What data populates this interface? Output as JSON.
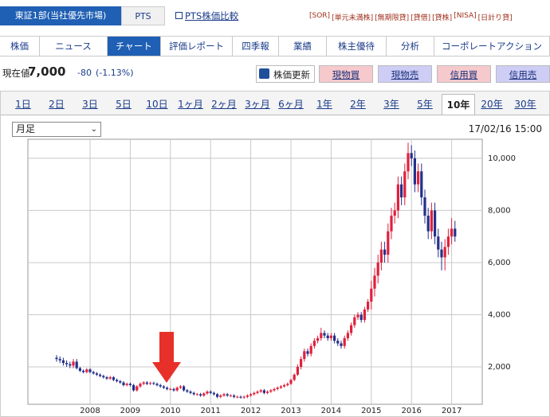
{
  "header": {
    "market_tabs": [
      "東証1部(当社優先市場)",
      "PTS"
    ],
    "link": "PTS株価比較",
    "badges": [
      "[SOR]",
      "[単元未満株]",
      "[無期限貸]",
      "[貸借]",
      "[貸株]",
      "[NISA]",
      "[日計り貸]"
    ]
  },
  "nav": {
    "items": [
      "株価",
      "ニュース",
      "チャート",
      "評価レポート",
      "四季報",
      "業績",
      "株主優待",
      "分析",
      "コーポレートアクション"
    ],
    "active": 2
  },
  "quote": {
    "label": "現在値",
    "price": "7,000",
    "change": "-80",
    "change_pct": "(-1.13%)"
  },
  "actions": [
    "株価更新",
    "現物買",
    "現物売",
    "信用買",
    "信用売"
  ],
  "periods": {
    "items": [
      "1日",
      "2日",
      "3日",
      "5日",
      "10日",
      "1ヶ月",
      "2ヶ月",
      "3ヶ月",
      "6ヶ月",
      "1年",
      "2年",
      "3年",
      "5年",
      "10年",
      "20年",
      "30年"
    ],
    "active": 13
  },
  "chart_data": {
    "type": "candlestick",
    "timeframe": "月足",
    "timestamp": "17/02/16 15:00",
    "up_color": "#e0203c",
    "down_color": "#22308a",
    "grid": true,
    "ylim": [
      565,
      10730
    ],
    "yticks": [
      {
        "value": 2000,
        "label": "2,000"
      },
      {
        "value": 4000,
        "label": "4,000"
      },
      {
        "value": 6000,
        "label": "6,000"
      },
      {
        "value": 8000,
        "label": "8,000"
      },
      {
        "value": 10000,
        "label": "10,000"
      }
    ],
    "categories": [
      null,
      null,
      null,
      null,
      null,
      null,
      null,
      null,
      null,
      null,
      "2008",
      null,
      null,
      null,
      null,
      null,
      null,
      null,
      null,
      null,
      null,
      null,
      "2009",
      null,
      null,
      null,
      null,
      null,
      null,
      null,
      null,
      null,
      null,
      null,
      "2010",
      null,
      null,
      null,
      null,
      null,
      null,
      null,
      null,
      null,
      null,
      null,
      "2011",
      null,
      null,
      null,
      null,
      null,
      null,
      null,
      null,
      null,
      null,
      null,
      "2012",
      null,
      null,
      null,
      null,
      null,
      null,
      null,
      null,
      null,
      null,
      null,
      "2013",
      null,
      null,
      null,
      null,
      null,
      null,
      null,
      null,
      null,
      null,
      null,
      "2014",
      null,
      null,
      null,
      null,
      null,
      null,
      null,
      null,
      null,
      null,
      null,
      "2015",
      null,
      null,
      null,
      null,
      null,
      null,
      null,
      null,
      null,
      null,
      null,
      "2016",
      null,
      null,
      null,
      null,
      null,
      null,
      null,
      null,
      null,
      null,
      null,
      "2017",
      null
    ],
    "open": [
      2350,
      2300,
      2250,
      2150,
      2100,
      2050,
      2200,
      1950,
      1850,
      1800,
      1900,
      1800,
      1750,
      1700,
      1650,
      1600,
      1550,
      1600,
      1500,
      1450,
      1400,
      1300,
      1350,
      1300,
      1100,
      1250,
      1350,
      1400,
      1350,
      1380,
      1350,
      1300,
      1250,
      1200,
      1150,
      1150,
      1100,
      1200,
      1250,
      1100,
      1050,
      1000,
      950,
      950,
      900,
      980,
      1050,
      1000,
      950,
      850,
      900,
      950,
      900,
      900,
      850,
      850,
      830,
      850,
      900,
      950,
      1000,
      1050,
      1100,
      1000,
      1050,
      1100,
      1150,
      1200,
      1250,
      1300,
      1350,
      1500,
      1700,
      2000,
      2300,
      2600,
      2500,
      2800,
      3000,
      3100,
      3300,
      3200,
      3100,
      3200,
      3000,
      2900,
      2800,
      3100,
      3300,
      3600,
      3900,
      4000,
      3800,
      4200,
      4500,
      5000,
      5500,
      6000,
      6500,
      6300,
      7200,
      7800,
      8000,
      9000,
      8500,
      9500,
      10200,
      10000,
      9000,
      9500,
      8500,
      7800,
      7200,
      8000,
      7000,
      6500,
      6200,
      6600,
      7000,
      7300
    ],
    "high": [
      2450,
      2400,
      2350,
      2250,
      2200,
      2300,
      2300,
      2000,
      1900,
      1950,
      1950,
      1850,
      1800,
      1750,
      1700,
      1650,
      1650,
      1650,
      1550,
      1500,
      1450,
      1400,
      1400,
      1350,
      1300,
      1400,
      1450,
      1450,
      1430,
      1430,
      1400,
      1350,
      1300,
      1250,
      1200,
      1200,
      1250,
      1300,
      1300,
      1150,
      1100,
      1050,
      1000,
      1000,
      1030,
      1100,
      1100,
      1050,
      1000,
      950,
      1000,
      1000,
      950,
      950,
      900,
      900,
      900,
      950,
      1000,
      1050,
      1100,
      1150,
      1150,
      1100,
      1150,
      1200,
      1250,
      1300,
      1350,
      1400,
      1550,
      1750,
      2100,
      2400,
      2700,
      2700,
      2900,
      3100,
      3200,
      3500,
      3400,
      3300,
      3300,
      3300,
      3100,
      3000,
      3200,
      3400,
      3700,
      4000,
      4100,
      4100,
      4300,
      4600,
      5300,
      5800,
      6300,
      6800,
      6800,
      7500,
      8100,
      8300,
      9300,
      9300,
      9800,
      10600,
      10500,
      10300,
      9800,
      9800,
      8800,
      8100,
      8300,
      8300,
      7300,
      6800,
      6900,
      7300,
      7700,
      7600
    ],
    "low": [
      2200,
      2150,
      2050,
      2000,
      1950,
      1950,
      1900,
      1800,
      1750,
      1750,
      1750,
      1700,
      1650,
      1600,
      1550,
      1500,
      1500,
      1450,
      1400,
      1350,
      1250,
      1250,
      1250,
      1050,
      1050,
      1200,
      1300,
      1300,
      1300,
      1300,
      1250,
      1200,
      1150,
      1100,
      1100,
      1050,
      1050,
      1150,
      1050,
      1000,
      950,
      900,
      900,
      850,
      850,
      930,
      950,
      900,
      800,
      800,
      850,
      850,
      850,
      800,
      800,
      780,
      780,
      800,
      850,
      900,
      950,
      1000,
      950,
      950,
      1000,
      1050,
      1100,
      1150,
      1200,
      1250,
      1300,
      1450,
      1650,
      1900,
      2200,
      2400,
      2400,
      2700,
      2900,
      3000,
      3100,
      3000,
      3000,
      2900,
      2800,
      2700,
      2700,
      3000,
      3200,
      3500,
      3800,
      3700,
      3700,
      4100,
      4200,
      4700,
      5200,
      5700,
      6000,
      6000,
      6900,
      7500,
      7700,
      8200,
      8200,
      9200,
      9700,
      8700,
      8700,
      8200,
      7500,
      6900,
      6900,
      6700,
      6200,
      5700,
      5700,
      6300,
      6700,
      6800
    ],
    "close": [
      2300,
      2250,
      2150,
      2100,
      2050,
      2200,
      1950,
      1850,
      1800,
      1900,
      1800,
      1750,
      1700,
      1650,
      1600,
      1550,
      1600,
      1500,
      1450,
      1400,
      1300,
      1350,
      1300,
      1100,
      1250,
      1350,
      1400,
      1350,
      1380,
      1350,
      1300,
      1250,
      1200,
      1150,
      1150,
      1100,
      1200,
      1250,
      1100,
      1050,
      1000,
      950,
      950,
      900,
      980,
      1050,
      1000,
      950,
      850,
      900,
      950,
      900,
      900,
      850,
      850,
      830,
      850,
      900,
      950,
      1000,
      1050,
      1100,
      1000,
      1050,
      1100,
      1150,
      1200,
      1250,
      1300,
      1350,
      1500,
      1700,
      2000,
      2300,
      2600,
      2500,
      2800,
      3000,
      3100,
      3300,
      3200,
      3100,
      3200,
      3000,
      2900,
      2800,
      3100,
      3300,
      3600,
      3900,
      4000,
      3800,
      4200,
      4500,
      5000,
      5500,
      6000,
      6500,
      6300,
      7200,
      7800,
      8000,
      9000,
      8500,
      9500,
      10200,
      10000,
      9000,
      9500,
      8500,
      7800,
      7200,
      8000,
      7000,
      6500,
      6200,
      6600,
      7000,
      7300,
      7000
    ]
  }
}
